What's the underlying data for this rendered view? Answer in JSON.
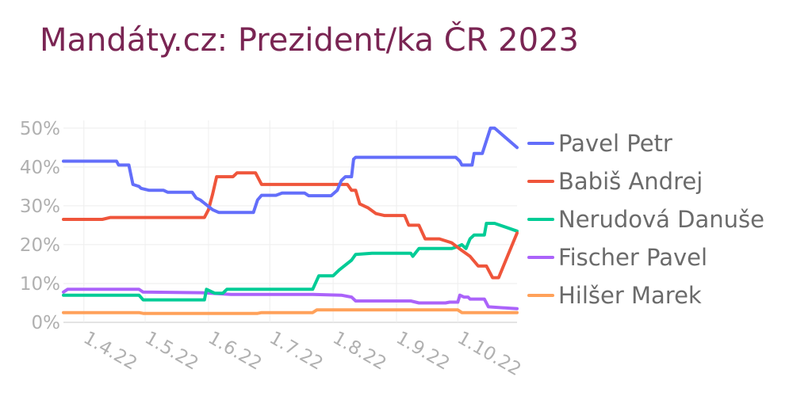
{
  "title": "Mandáty.cz: Prezident/ka ČR 2023",
  "chart_data": {
    "type": "line",
    "title": "Mandáty.cz: Prezident/ka ČR 2023",
    "xlabel": "",
    "ylabel": "",
    "x_ticks": [
      "1.4.22",
      "1.5.22",
      "1.6.22",
      "1.7.22",
      "1.8.22",
      "1.9.22",
      "1.10.22"
    ],
    "x_range": [
      "2022-03-22",
      "2022-10-30"
    ],
    "y_ticks": [
      "0%",
      "10%",
      "20%",
      "30%",
      "40%",
      "50%"
    ],
    "ylim": [
      0,
      52
    ],
    "grid": true,
    "legend_position": "right",
    "series": [
      {
        "name": "Pavel Petr",
        "color": "#636efa",
        "points": [
          [
            "2022-03-22",
            41.5
          ],
          [
            "2022-04-10",
            41.5
          ],
          [
            "2022-04-17",
            41.5
          ],
          [
            "2022-04-18",
            40.5
          ],
          [
            "2022-04-23",
            40.5
          ],
          [
            "2022-04-25",
            35.5
          ],
          [
            "2022-04-28",
            35.0
          ],
          [
            "2022-04-29",
            34.5
          ],
          [
            "2022-05-03",
            34.0
          ],
          [
            "2022-05-10",
            34.0
          ],
          [
            "2022-05-12",
            33.5
          ],
          [
            "2022-05-24",
            33.5
          ],
          [
            "2022-05-26",
            32.0
          ],
          [
            "2022-05-28",
            31.5
          ],
          [
            "2022-06-03",
            29.0
          ],
          [
            "2022-06-06",
            28.3
          ],
          [
            "2022-06-15",
            28.3
          ],
          [
            "2022-06-23",
            28.3
          ],
          [
            "2022-06-25",
            31.5
          ],
          [
            "2022-06-27",
            32.7
          ],
          [
            "2022-07-04",
            32.7
          ],
          [
            "2022-07-07",
            33.3
          ],
          [
            "2022-07-18",
            33.3
          ],
          [
            "2022-07-20",
            32.6
          ],
          [
            "2022-07-31",
            32.6
          ],
          [
            "2022-08-03",
            34.0
          ],
          [
            "2022-08-05",
            36.5
          ],
          [
            "2022-08-07",
            37.5
          ],
          [
            "2022-08-10",
            37.5
          ],
          [
            "2022-08-11",
            42.0
          ],
          [
            "2022-08-12",
            42.5
          ],
          [
            "2022-08-20",
            42.5
          ],
          [
            "2022-09-30",
            42.5
          ],
          [
            "2022-10-02",
            41.5
          ],
          [
            "2022-10-03",
            40.5
          ],
          [
            "2022-10-08",
            40.5
          ],
          [
            "2022-10-09",
            43.5
          ],
          [
            "2022-10-13",
            43.5
          ],
          [
            "2022-10-17",
            50.0
          ],
          [
            "2022-10-19",
            50.0
          ],
          [
            "2022-10-30",
            45.0
          ]
        ]
      },
      {
        "name": "Babiš Andrej",
        "color": "#ef553b",
        "points": [
          [
            "2022-03-22",
            26.5
          ],
          [
            "2022-04-10",
            26.5
          ],
          [
            "2022-04-14",
            27.0
          ],
          [
            "2022-05-30",
            27.0
          ],
          [
            "2022-06-01",
            29.0
          ],
          [
            "2022-06-03",
            33.0
          ],
          [
            "2022-06-05",
            37.5
          ],
          [
            "2022-06-13",
            37.5
          ],
          [
            "2022-06-15",
            38.5
          ],
          [
            "2022-06-24",
            38.5
          ],
          [
            "2022-06-27",
            35.5
          ],
          [
            "2022-07-29",
            35.5
          ],
          [
            "2022-08-08",
            35.5
          ],
          [
            "2022-08-10",
            34.0
          ],
          [
            "2022-08-12",
            34.0
          ],
          [
            "2022-08-14",
            30.5
          ],
          [
            "2022-08-18",
            29.5
          ],
          [
            "2022-08-22",
            28.0
          ],
          [
            "2022-08-26",
            27.5
          ],
          [
            "2022-09-05",
            27.5
          ],
          [
            "2022-09-07",
            25.0
          ],
          [
            "2022-09-12",
            25.0
          ],
          [
            "2022-09-15",
            21.5
          ],
          [
            "2022-09-22",
            21.5
          ],
          [
            "2022-09-28",
            20.5
          ],
          [
            "2022-10-03",
            18.5
          ],
          [
            "2022-10-07",
            17.0
          ],
          [
            "2022-10-11",
            14.5
          ],
          [
            "2022-10-15",
            14.5
          ],
          [
            "2022-10-18",
            11.5
          ],
          [
            "2022-10-21",
            11.5
          ],
          [
            "2022-10-30",
            23.0
          ]
        ]
      },
      {
        "name": "Nerudová Danuše",
        "color": "#00cc96",
        "points": [
          [
            "2022-03-22",
            7.0
          ],
          [
            "2022-04-28",
            7.0
          ],
          [
            "2022-04-30",
            5.8
          ],
          [
            "2022-05-30",
            5.8
          ],
          [
            "2022-05-31",
            8.5
          ],
          [
            "2022-06-04",
            7.5
          ],
          [
            "2022-06-08",
            7.5
          ],
          [
            "2022-06-10",
            8.5
          ],
          [
            "2022-07-22",
            8.5
          ],
          [
            "2022-07-25",
            12.0
          ],
          [
            "2022-08-01",
            12.0
          ],
          [
            "2022-08-04",
            13.5
          ],
          [
            "2022-08-10",
            16.0
          ],
          [
            "2022-08-12",
            17.5
          ],
          [
            "2022-08-20",
            17.8
          ],
          [
            "2022-09-08",
            17.8
          ],
          [
            "2022-09-09",
            17.0
          ],
          [
            "2022-09-12",
            19.0
          ],
          [
            "2022-09-28",
            19.0
          ],
          [
            "2022-10-01",
            19.5
          ],
          [
            "2022-10-03",
            20.0
          ],
          [
            "2022-10-05",
            19.0
          ],
          [
            "2022-10-07",
            21.5
          ],
          [
            "2022-10-09",
            22.5
          ],
          [
            "2022-10-14",
            22.5
          ],
          [
            "2022-10-15",
            25.5
          ],
          [
            "2022-10-19",
            25.5
          ],
          [
            "2022-10-30",
            23.5
          ]
        ]
      },
      {
        "name": "Fischer Pavel",
        "color": "#ab63fa",
        "points": [
          [
            "2022-03-22",
            7.8
          ],
          [
            "2022-03-24",
            8.5
          ],
          [
            "2022-04-28",
            8.5
          ],
          [
            "2022-04-30",
            7.8
          ],
          [
            "2022-05-30",
            7.6
          ],
          [
            "2022-06-12",
            7.2
          ],
          [
            "2022-07-22",
            7.2
          ],
          [
            "2022-08-05",
            7.0
          ],
          [
            "2022-08-10",
            6.5
          ],
          [
            "2022-08-12",
            5.5
          ],
          [
            "2022-09-08",
            5.5
          ],
          [
            "2022-09-12",
            5.0
          ],
          [
            "2022-09-25",
            5.0
          ],
          [
            "2022-09-27",
            5.2
          ],
          [
            "2022-10-01",
            5.2
          ],
          [
            "2022-10-02",
            7.0
          ],
          [
            "2022-10-04",
            6.5
          ],
          [
            "2022-10-06",
            6.5
          ],
          [
            "2022-10-07",
            6.0
          ],
          [
            "2022-10-14",
            6.0
          ],
          [
            "2022-10-16",
            4.0
          ],
          [
            "2022-10-30",
            3.5
          ]
        ]
      },
      {
        "name": "Hilšer Marek",
        "color": "#ffa15a",
        "points": [
          [
            "2022-03-22",
            2.5
          ],
          [
            "2022-04-28",
            2.5
          ],
          [
            "2022-04-30",
            2.3
          ],
          [
            "2022-06-25",
            2.3
          ],
          [
            "2022-06-27",
            2.5
          ],
          [
            "2022-07-22",
            2.5
          ],
          [
            "2022-07-24",
            3.2
          ],
          [
            "2022-10-01",
            3.2
          ],
          [
            "2022-10-03",
            2.5
          ],
          [
            "2022-10-30",
            2.5
          ]
        ]
      }
    ]
  }
}
